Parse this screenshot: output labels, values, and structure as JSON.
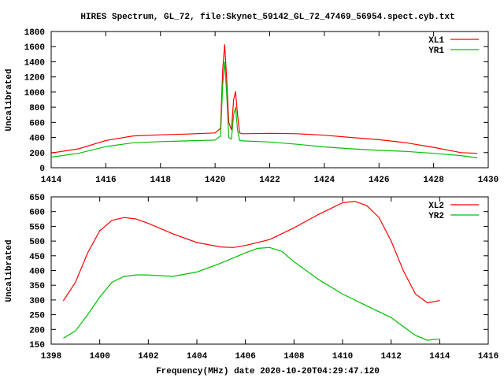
{
  "title": "HIRES Spectrum, GL_72, file:Skynet_59142_GL_72_47469_56954.spect.cyb.txt",
  "chart_data": [
    {
      "type": "line",
      "title": "HIRES Spectrum, GL_72, file:Skynet_59142_GL_72_47469_56954.spect.cyb.txt",
      "xlabel": "",
      "ylabel": "Uncalibrated",
      "xlim": [
        1414,
        1430
      ],
      "ylim": [
        0,
        1800
      ],
      "xticks": [
        1414,
        1416,
        1418,
        1420,
        1422,
        1424,
        1426,
        1428,
        1430
      ],
      "yticks": [
        0,
        200,
        400,
        600,
        800,
        1000,
        1200,
        1400,
        1600,
        1800
      ],
      "legend": "top-right",
      "grid": false,
      "series": [
        {
          "name": "XL1",
          "color": "#ff0000",
          "x": [
            1414,
            1415,
            1416,
            1417,
            1418,
            1419,
            1420,
            1420.2,
            1420.28,
            1420.35,
            1420.42,
            1420.5,
            1420.6,
            1420.68,
            1420.75,
            1420.82,
            1420.9,
            1421,
            1422,
            1423,
            1424,
            1425,
            1426,
            1427,
            1428,
            1429,
            1429.6
          ],
          "y": [
            195,
            250,
            360,
            420,
            435,
            445,
            460,
            520,
            1300,
            1630,
            1200,
            600,
            500,
            900,
            1010,
            700,
            460,
            450,
            455,
            450,
            430,
            400,
            370,
            330,
            270,
            200,
            190
          ]
        },
        {
          "name": "YR1",
          "color": "#00c000",
          "x": [
            1414,
            1415,
            1416,
            1417,
            1418,
            1419,
            1420,
            1420.2,
            1420.28,
            1420.35,
            1420.42,
            1420.5,
            1420.6,
            1420.68,
            1420.75,
            1420.82,
            1420.9,
            1421,
            1422,
            1423,
            1424,
            1425,
            1426,
            1427,
            1428,
            1429,
            1429.6
          ],
          "y": [
            140,
            190,
            280,
            330,
            345,
            355,
            365,
            420,
            1100,
            1400,
            1000,
            400,
            380,
            700,
            800,
            500,
            360,
            355,
            340,
            310,
            275,
            250,
            230,
            215,
            190,
            160,
            130
          ]
        }
      ]
    },
    {
      "type": "line",
      "title": "",
      "xlabel": "Frequency(MHz) date 2020-10-20T04:29:47.120",
      "ylabel": "Uncalibrated",
      "xlim": [
        1398,
        1416
      ],
      "ylim": [
        150,
        650
      ],
      "xticks": [
        1398,
        1400,
        1402,
        1404,
        1406,
        1408,
        1410,
        1412,
        1414,
        1416
      ],
      "yticks": [
        150,
        200,
        250,
        300,
        350,
        400,
        450,
        500,
        550,
        600,
        650
      ],
      "legend": "top-right",
      "grid": false,
      "series": [
        {
          "name": "XL2",
          "color": "#ff0000",
          "x": [
            1398.5,
            1399,
            1399.5,
            1400,
            1400.5,
            1401,
            1401.5,
            1402,
            1403,
            1404,
            1405,
            1405.5,
            1406,
            1407,
            1408,
            1409,
            1410,
            1410.5,
            1411,
            1411.5,
            1412,
            1412.5,
            1413,
            1413.5,
            1414
          ],
          "y": [
            297,
            360,
            460,
            535,
            570,
            580,
            575,
            560,
            525,
            495,
            480,
            478,
            485,
            505,
            545,
            590,
            630,
            635,
            620,
            580,
            500,
            400,
            320,
            290,
            298
          ]
        },
        {
          "name": "YR2",
          "color": "#00c000",
          "x": [
            1398.5,
            1399,
            1399.5,
            1400,
            1400.5,
            1401,
            1401.5,
            1402,
            1403,
            1404,
            1405,
            1406,
            1406.5,
            1407,
            1407.5,
            1408,
            1409,
            1410,
            1411,
            1412,
            1412.5,
            1413,
            1413.5,
            1414
          ],
          "y": [
            170,
            195,
            250,
            310,
            360,
            380,
            385,
            385,
            380,
            395,
            425,
            460,
            475,
            478,
            465,
            430,
            370,
            320,
            280,
            240,
            210,
            180,
            163,
            168
          ]
        }
      ]
    }
  ]
}
